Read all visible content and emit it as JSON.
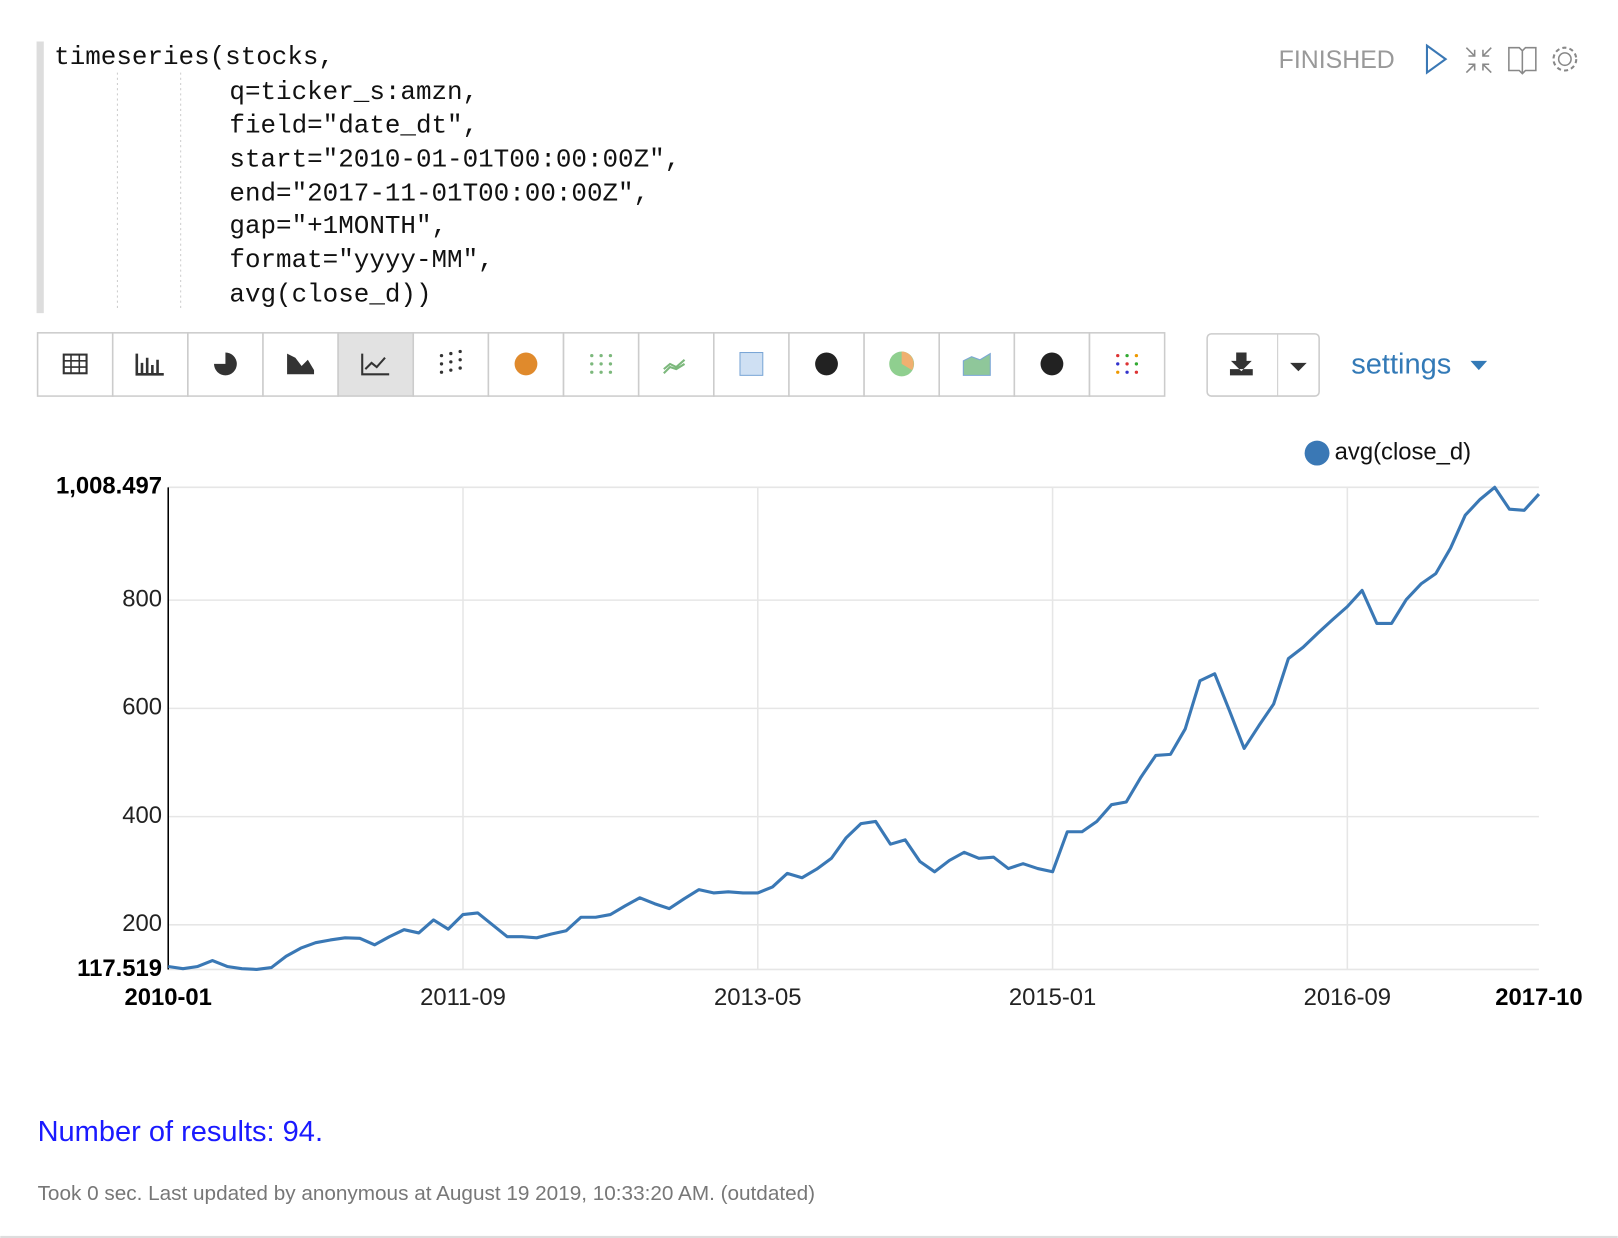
{
  "status": "FINISHED",
  "code": {
    "lines": [
      "timeseries(stocks,",
      "q=ticker_s:amzn,",
      "field=\"date_dt\",",
      "start=\"2010-01-01T00:00:00Z\",",
      "end=\"2017-11-01T00:00:00Z\",",
      "gap=\"+1MONTH\",",
      "format=\"yyyy-MM\",",
      "avg(close_d))"
    ]
  },
  "toolbar": {
    "settings": "settings"
  },
  "chart_data": {
    "type": "line",
    "grid": true,
    "categories": [
      "2010-01",
      null,
      null,
      null,
      null,
      null,
      null,
      null,
      null,
      null,
      null,
      null,
      null,
      null,
      null,
      null,
      null,
      null,
      null,
      null,
      "2011-09",
      null,
      null,
      null,
      null,
      null,
      null,
      null,
      null,
      null,
      null,
      null,
      null,
      null,
      null,
      null,
      null,
      null,
      null,
      null,
      "2013-05",
      null,
      null,
      null,
      null,
      null,
      null,
      null,
      null,
      null,
      null,
      null,
      null,
      null,
      null,
      null,
      null,
      null,
      null,
      null,
      "2015-01",
      null,
      null,
      null,
      null,
      null,
      null,
      null,
      null,
      null,
      null,
      null,
      null,
      null,
      null,
      null,
      null,
      null,
      null,
      null,
      "2016-09",
      null,
      null,
      null,
      null,
      null,
      null,
      null,
      null,
      null,
      null,
      null,
      null,
      "2017-10"
    ],
    "series": [
      {
        "name": "avg(close_d)",
        "color": "#3a78b5",
        "values": [
          123,
          119,
          123,
          134,
          123,
          119,
          117.519,
          121,
          142,
          157,
          167,
          172,
          176,
          175,
          163,
          178,
          191,
          185,
          209,
          192,
          219,
          222,
          200,
          178,
          178,
          176,
          183,
          189,
          214,
          214,
          219,
          235,
          250,
          239,
          230,
          248,
          265,
          259,
          261,
          259,
          259,
          270,
          295,
          287,
          303,
          323,
          361,
          387,
          391,
          349,
          357,
          317,
          298,
          319,
          334,
          323,
          325,
          304,
          313,
          304,
          298,
          372,
          372,
          391,
          422,
          427,
          473,
          513,
          515,
          562,
          651,
          664,
          596,
          526,
          568,
          608,
          692,
          713,
          739,
          764,
          788,
          818,
          757,
          757,
          801,
          830,
          849,
          896,
          957,
          986,
          1008.497,
          968,
          966,
          996
        ]
      }
    ],
    "ylim": [
      117.519,
      1008.497
    ],
    "yticks": [
      117.519,
      200,
      400,
      600,
      800,
      {
        "value": 1008.497,
        "label": "1,008.497"
      }
    ]
  },
  "results": "Number of results: 94.",
  "footer": "Took 0 sec. Last updated by anonymous at August 19 2019, 10:33:20 AM. (outdated)"
}
